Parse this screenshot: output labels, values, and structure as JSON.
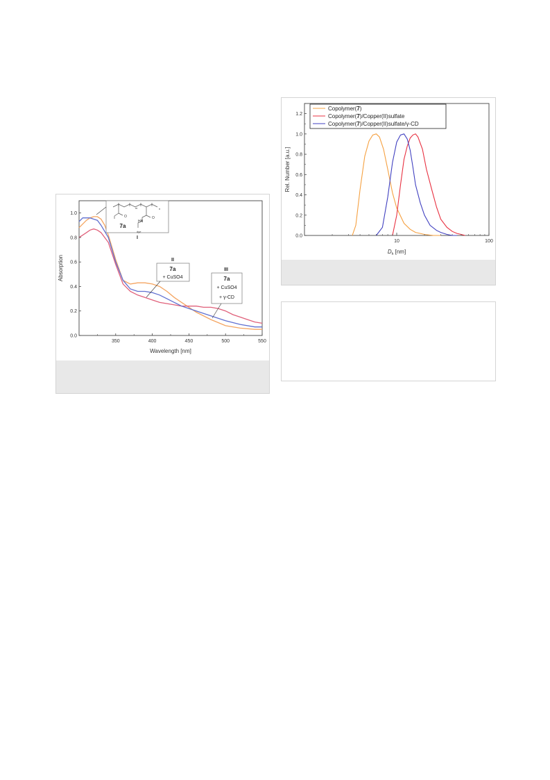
{
  "chart_data": [
    {
      "type": "line",
      "xlabel": "Wavelength [nm]",
      "ylabel": "Absorption",
      "xlim": [
        300,
        550
      ],
      "ylim": [
        0.0,
        1.1
      ],
      "xticks": [
        "350",
        "400",
        "450",
        "500",
        "550"
      ],
      "yticks": [
        "0.0",
        "0.2",
        "0.4",
        "0.6",
        "0.8",
        "1.0"
      ],
      "annotations": [
        {
          "roman": "I",
          "compound": "7a",
          "lines": []
        },
        {
          "roman": "II",
          "compound": "7a",
          "lines": [
            "+ CuSO4"
          ]
        },
        {
          "roman": "III",
          "compound": "7a",
          "lines": [
            "+ CuSO4",
            "+ γ-CD"
          ]
        }
      ],
      "structure_labels": [
        "HN",
        "dye",
        "O",
        "O",
        "m",
        "n"
      ],
      "series": [
        {
          "color": "#f4a460",
          "x": [
            300,
            310,
            315,
            320,
            325,
            330,
            335,
            340,
            350,
            360,
            370,
            380,
            390,
            400,
            410,
            420,
            430,
            440,
            450,
            460,
            480,
            500,
            520,
            540,
            550
          ],
          "values": [
            0.88,
            0.94,
            0.96,
            0.97,
            0.97,
            0.95,
            0.9,
            0.82,
            0.62,
            0.45,
            0.42,
            0.43,
            0.43,
            0.42,
            0.4,
            0.36,
            0.31,
            0.27,
            0.23,
            0.19,
            0.13,
            0.08,
            0.06,
            0.05,
            0.05
          ]
        },
        {
          "color": "#e0607a",
          "x": [
            300,
            310,
            315,
            320,
            325,
            330,
            340,
            350,
            360,
            370,
            380,
            390,
            400,
            410,
            420,
            430,
            440,
            450,
            460,
            470,
            480,
            490,
            500,
            510,
            520,
            530,
            540,
            550
          ],
          "values": [
            0.8,
            0.84,
            0.86,
            0.87,
            0.86,
            0.84,
            0.76,
            0.58,
            0.42,
            0.36,
            0.33,
            0.31,
            0.29,
            0.27,
            0.26,
            0.25,
            0.24,
            0.24,
            0.24,
            0.23,
            0.23,
            0.22,
            0.2,
            0.17,
            0.15,
            0.13,
            0.11,
            0.1
          ]
        },
        {
          "color": "#6070d0",
          "x": [
            300,
            305,
            310,
            315,
            320,
            325,
            330,
            340,
            350,
            360,
            370,
            380,
            390,
            400,
            410,
            420,
            430,
            440,
            450,
            460,
            470,
            480,
            490,
            500,
            520,
            540,
            550
          ],
          "values": [
            0.93,
            0.96,
            0.96,
            0.96,
            0.95,
            0.94,
            0.9,
            0.8,
            0.6,
            0.45,
            0.38,
            0.36,
            0.36,
            0.35,
            0.33,
            0.3,
            0.27,
            0.24,
            0.22,
            0.2,
            0.18,
            0.16,
            0.14,
            0.12,
            0.09,
            0.07,
            0.07
          ]
        }
      ]
    },
    {
      "type": "line",
      "xlabel_base": "D",
      "xlabel_sub": "h",
      "xlabel_unit": " [nm]",
      "ylabel": "Rel. Number [a.u.]",
      "xscale": "log",
      "xlim": [
        1,
        100
      ],
      "ylim": [
        0.0,
        1.3
      ],
      "xticks": [
        "10",
        "100"
      ],
      "yticks": [
        "0.0",
        "0.2",
        "0.4",
        "0.6",
        "0.8",
        "1.0",
        "1.2"
      ],
      "legend_position": "top-left",
      "series": [
        {
          "name_pre": "Copolymer(",
          "name_num": "7",
          "name_post": ")",
          "color": "#f5a040",
          "x": [
            3.3,
            3.6,
            4.0,
            4.5,
            5.0,
            5.5,
            6.0,
            6.5,
            7.2,
            8.0,
            9.0,
            10,
            12,
            14,
            16,
            18,
            20,
            25,
            30
          ],
          "values": [
            0.0,
            0.1,
            0.45,
            0.78,
            0.93,
            0.99,
            1.0,
            0.97,
            0.85,
            0.65,
            0.42,
            0.27,
            0.12,
            0.06,
            0.03,
            0.02,
            0.01,
            0.0,
            0.0
          ]
        },
        {
          "name_pre": "Copolymer(",
          "name_num": "7",
          "name_post": ")/Copper(II)sulfate",
          "color": "#e83040",
          "x": [
            9.0,
            10,
            11,
            12,
            13,
            14,
            15,
            16,
            17,
            19,
            21,
            24,
            27,
            30,
            35,
            40,
            45,
            50,
            55
          ],
          "values": [
            0.0,
            0.2,
            0.5,
            0.75,
            0.88,
            0.96,
            0.99,
            1.0,
            0.97,
            0.85,
            0.65,
            0.45,
            0.28,
            0.16,
            0.08,
            0.04,
            0.02,
            0.01,
            0.0
          ]
        },
        {
          "name_pre": "Copolymer(",
          "name_num": "7",
          "name_post": ")/Copper(II)sulfate/γ-CD",
          "color": "#4040c0",
          "x": [
            6.0,
            7.0,
            8.0,
            9.0,
            10,
            11,
            12,
            13,
            14,
            15,
            16,
            18,
            20,
            23,
            27,
            30,
            35,
            40,
            45
          ],
          "values": [
            0.0,
            0.08,
            0.38,
            0.72,
            0.92,
            0.99,
            1.0,
            0.95,
            0.84,
            0.67,
            0.5,
            0.32,
            0.2,
            0.1,
            0.05,
            0.03,
            0.01,
            0.0,
            0.0
          ]
        }
      ]
    }
  ]
}
